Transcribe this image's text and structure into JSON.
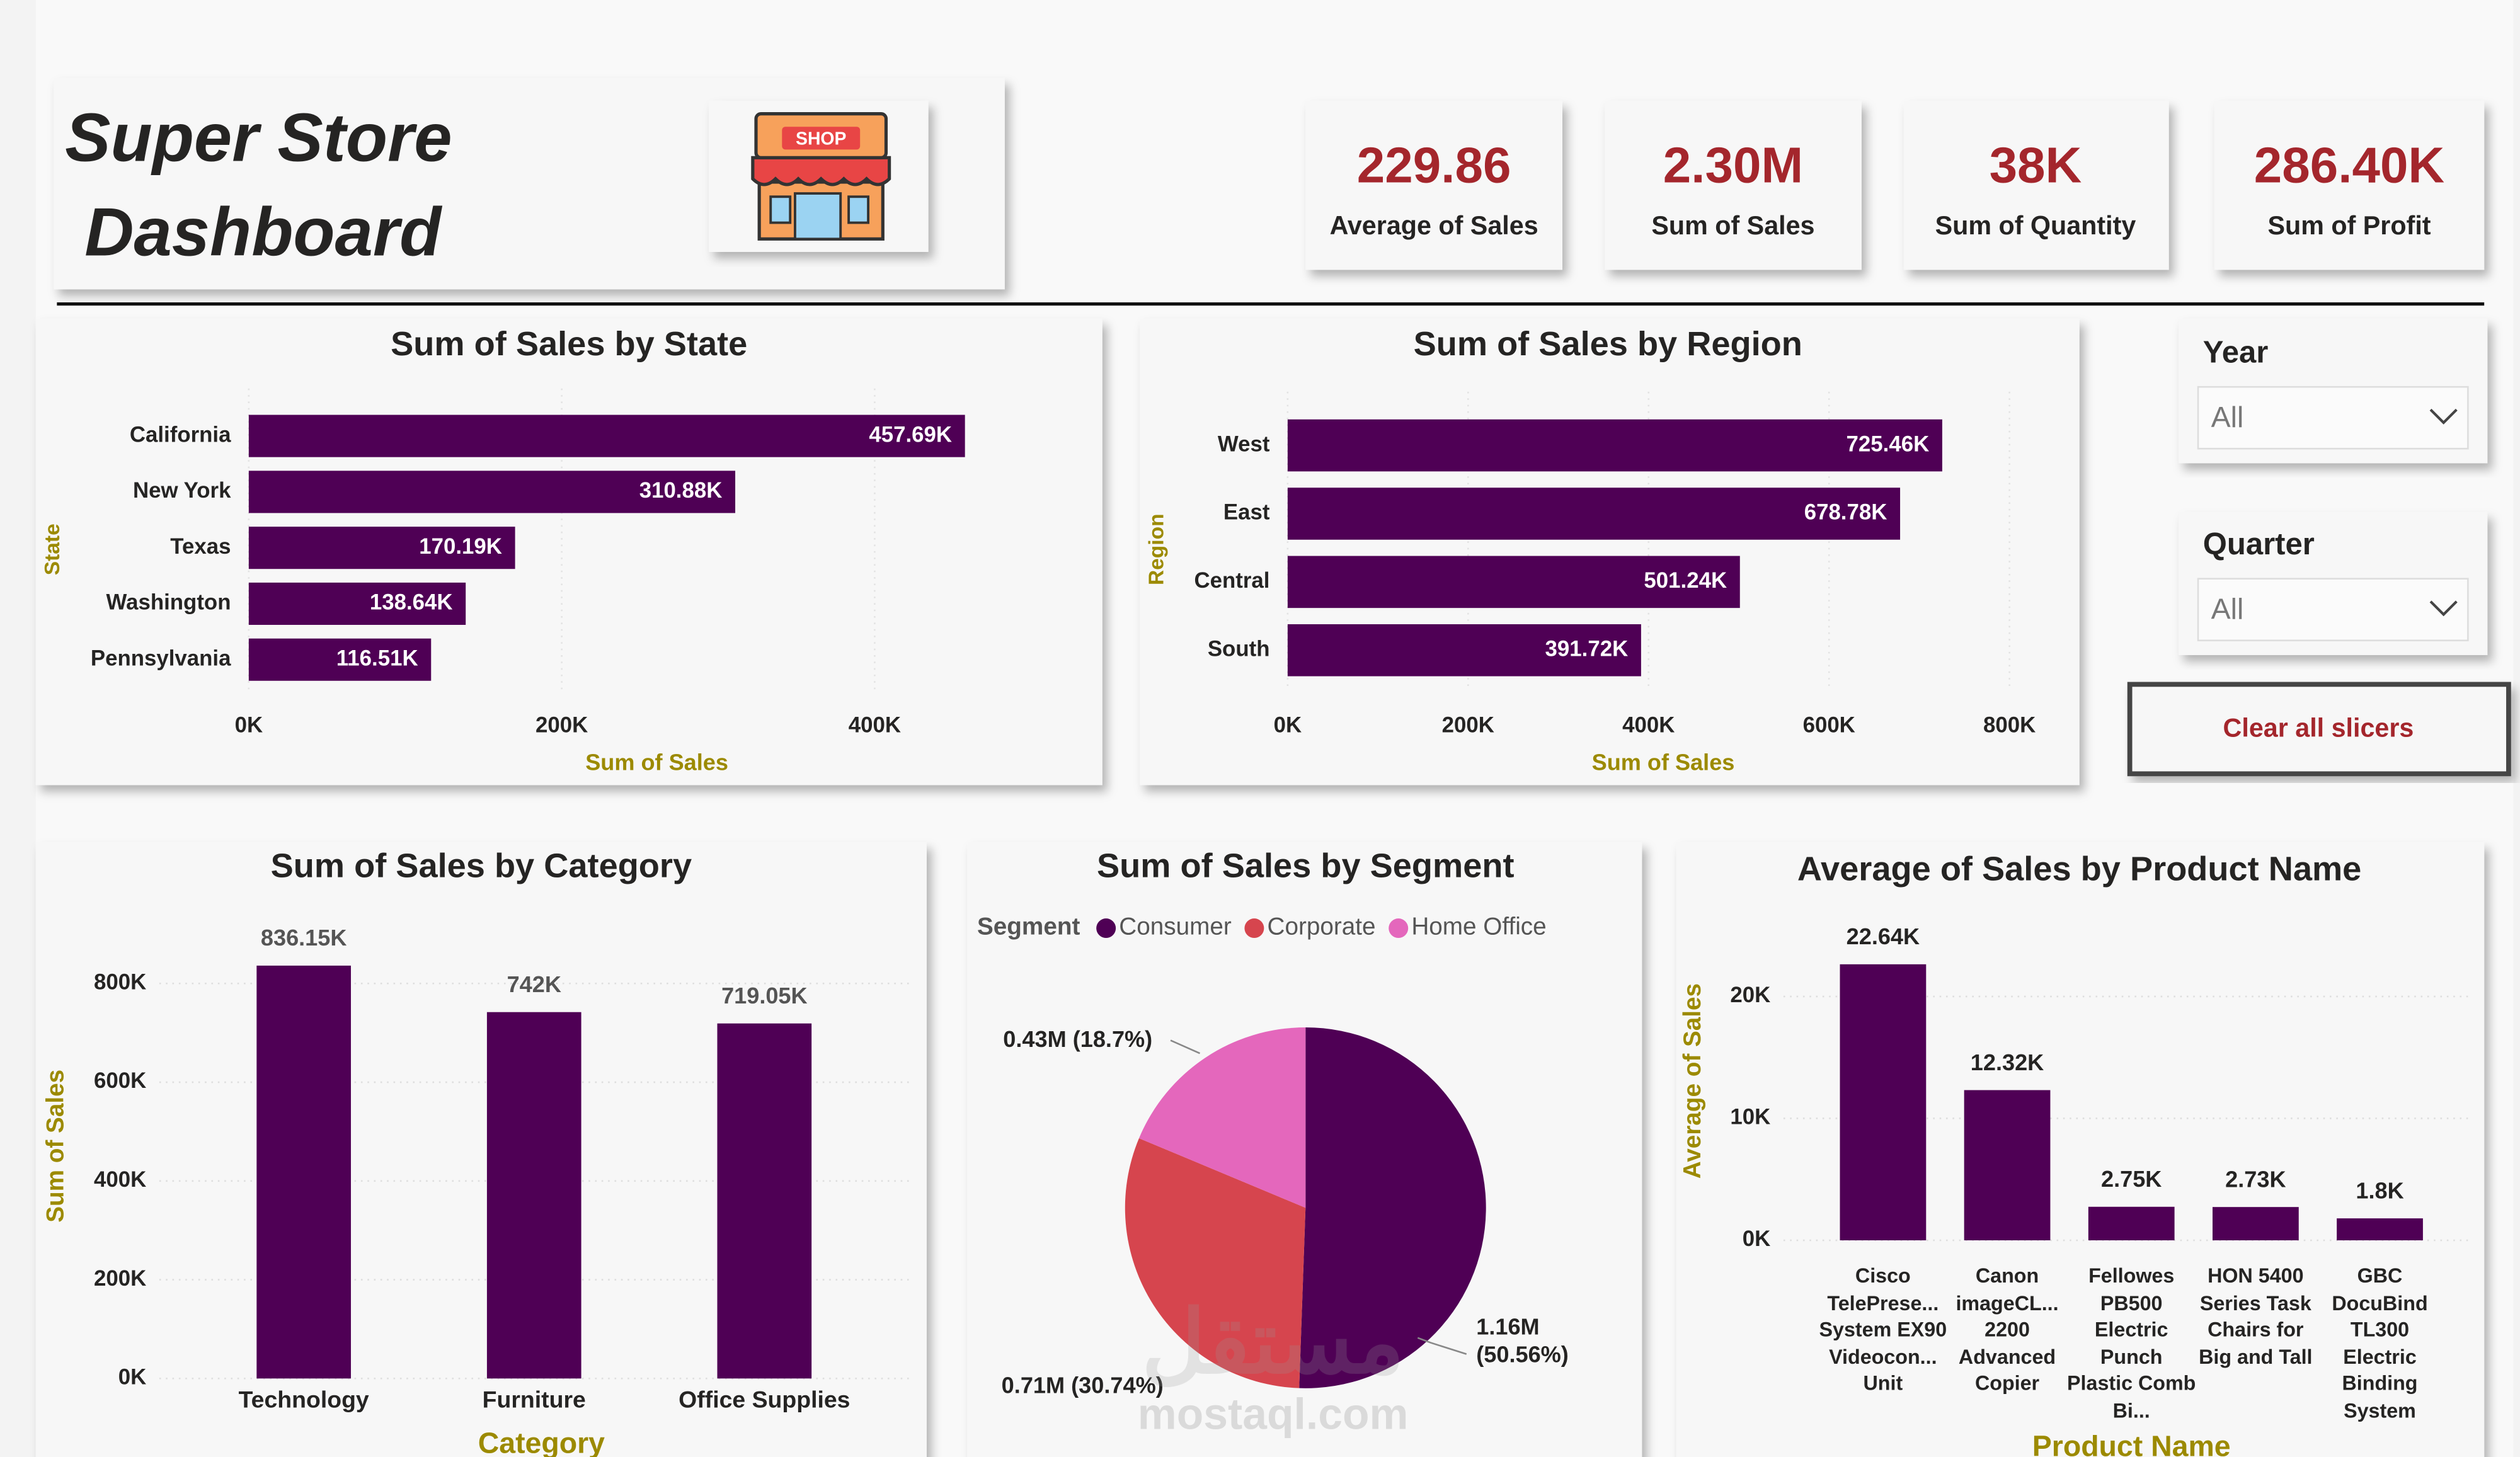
{
  "header": {
    "title_line1": "Super Store",
    "title_line2": "Dashboard",
    "logo_text": "SHOP"
  },
  "kpis": [
    {
      "value": "229.86",
      "label": "Average of Sales"
    },
    {
      "value": "2.30M",
      "label": "Sum of Sales"
    },
    {
      "value": "38K",
      "label": "Sum of Quantity"
    },
    {
      "value": "286.40K",
      "label": "Sum of Profit"
    }
  ],
  "slicers": [
    {
      "label": "Year",
      "value": "All"
    },
    {
      "label": "Quarter",
      "value": "All"
    }
  ],
  "clear_button": "Clear all slicers",
  "watermark": {
    "arabic": "مستقل",
    "latin": "mostaql.com"
  },
  "chart_data": [
    {
      "type": "bar",
      "orientation": "horizontal",
      "title": "Sum of Sales by State",
      "x_label": "Sum of Sales",
      "y_label": "State",
      "categories": [
        "California",
        "New York",
        "Texas",
        "Washington",
        "Pennsylvania"
      ],
      "values": [
        457690,
        310880,
        170190,
        138640,
        116510
      ],
      "value_labels": [
        "457.69K",
        "310.88K",
        "170.19K",
        "138.64K",
        "116.51K"
      ],
      "color": "#4f0055",
      "xlim": [
        0,
        480000
      ],
      "xticks": [
        {
          "value": 0,
          "label": "0K"
        },
        {
          "value": 200000,
          "label": "200K"
        },
        {
          "value": 400000,
          "label": "400K"
        }
      ],
      "grid": true
    },
    {
      "type": "bar",
      "orientation": "horizontal",
      "title": "Sum of Sales by Region",
      "x_label": "Sum of Sales",
      "y_label": "Region",
      "categories": [
        "West",
        "East",
        "Central",
        "South"
      ],
      "values": [
        725460,
        678780,
        501240,
        391720
      ],
      "value_labels": [
        "725.46K",
        "678.78K",
        "501.24K",
        "391.72K"
      ],
      "color": "#4f0055",
      "xlim": [
        0,
        800000
      ],
      "xticks": [
        {
          "value": 0,
          "label": "0K"
        },
        {
          "value": 200000,
          "label": "200K"
        },
        {
          "value": 400000,
          "label": "400K"
        },
        {
          "value": 600000,
          "label": "600K"
        },
        {
          "value": 800000,
          "label": "800K"
        }
      ],
      "grid": true
    },
    {
      "type": "bar",
      "orientation": "vertical",
      "title": "Sum of Sales by Category",
      "x_label": "Category",
      "y_label": "Sum of Sales",
      "categories": [
        "Technology",
        "Furniture",
        "Office Supplies"
      ],
      "values": [
        836150,
        742000,
        719050
      ],
      "value_labels": [
        "836.15K",
        "742K",
        "719.05K"
      ],
      "color": "#4f0055",
      "ylim": [
        0,
        880000
      ],
      "yticks": [
        {
          "value": 0,
          "label": "0K"
        },
        {
          "value": 200000,
          "label": "200K"
        },
        {
          "value": 400000,
          "label": "400K"
        },
        {
          "value": 600000,
          "label": "600K"
        },
        {
          "value": 800000,
          "label": "800K"
        }
      ],
      "grid": true
    },
    {
      "type": "pie",
      "title": "Sum of Sales by Segment",
      "legend_title": "Segment",
      "categories": [
        "Consumer",
        "Corporate",
        "Home Office"
      ],
      "values": [
        50.56,
        30.74,
        18.7
      ],
      "value_labels": [
        "1.16M (50.56%)",
        "0.71M (30.74%)",
        "0.43M (18.7%)"
      ],
      "colors": [
        "#4f0055",
        "#d6454e",
        "#e467bc"
      ]
    },
    {
      "type": "bar",
      "orientation": "vertical",
      "title": "Average of Sales by Product Name",
      "x_label": "Product Name",
      "y_label": "Average of Sales",
      "categories": [
        "Cisco TelePrese... System EX90 Videocon... Unit",
        "Canon imageCL... 2200 Advanced Copier",
        "Fellowes PB500 Electric Punch Plastic Comb Bi...",
        "HON 5400 Series Task Chairs for Big and Tall",
        "GBC DocuBind TL300 Electric Binding System"
      ],
      "values": [
        22640,
        12320,
        2750,
        2730,
        1800
      ],
      "value_labels": [
        "22.64K",
        "12.32K",
        "2.75K",
        "2.73K",
        "1.8K"
      ],
      "color": "#4f0055",
      "ylim": [
        0,
        24000
      ],
      "yticks": [
        {
          "value": 0,
          "label": "0K"
        },
        {
          "value": 10000,
          "label": "10K"
        },
        {
          "value": 20000,
          "label": "20K"
        }
      ],
      "grid": true
    }
  ]
}
